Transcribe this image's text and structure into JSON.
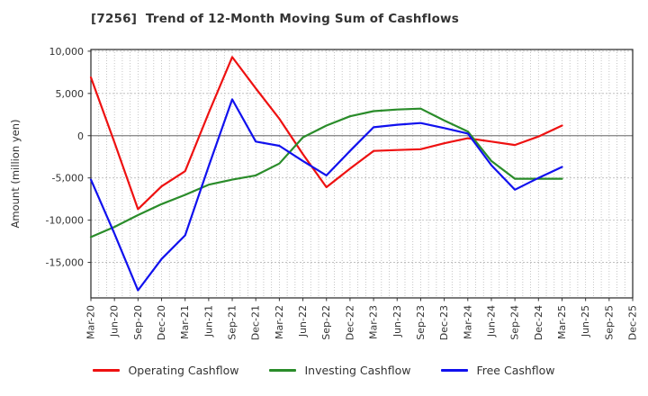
{
  "page": {
    "background": "#ffffff"
  },
  "chart_data": {
    "type": "line",
    "title": "[7256]  Trend of 12-Month Moving Sum of Cashflows",
    "ylabel": "Amount (million yen)",
    "x_tick_labels": [
      "Mar-20",
      "Jun-20",
      "Sep-20",
      "Dec-20",
      "Mar-21",
      "Jun-21",
      "Sep-21",
      "Dec-21",
      "Mar-22",
      "Jun-22",
      "Sep-22",
      "Dec-22",
      "Mar-23",
      "Jun-23",
      "Sep-23",
      "Dec-23",
      "Mar-24",
      "Jun-24",
      "Sep-24",
      "Dec-24",
      "Mar-25",
      "Jun-25",
      "Sep-25",
      "Dec-25"
    ],
    "y_ticks": [
      {
        "value": 10000,
        "label": "10,000"
      },
      {
        "value": 5000,
        "label": "5,000"
      },
      {
        "value": 0,
        "label": "0"
      },
      {
        "value": -5000,
        "label": "-5,000"
      },
      {
        "value": -10000,
        "label": "-10,000"
      },
      {
        "value": -15000,
        "label": "-15,000"
      }
    ],
    "ylim": [
      -19200,
      10200
    ],
    "grid": {
      "vertical": "monthly dotted",
      "horizontal": "every 5000 dotted",
      "zero_line": "solid gray"
    },
    "legend_position": "bottom-center",
    "axis_color": "#333333",
    "grid_color": "#b8b8b8",
    "zero_line_color": "#808080",
    "series": [
      {
        "name": "Operating Cashflow",
        "color": "#ee1111",
        "values": [
          6900,
          -800,
          -8700,
          -6000,
          -4200,
          2700,
          9300,
          5600,
          2000,
          -2200,
          -6100,
          -3900,
          -1800,
          -1700,
          -1600,
          -900,
          -300,
          -700,
          -1100,
          -100,
          1200
        ]
      },
      {
        "name": "Investing Cashflow",
        "color": "#2a8c2a",
        "values": [
          -12000,
          -10800,
          -9400,
          -8100,
          -7000,
          -5800,
          -5200,
          -4700,
          -3300,
          -200,
          1200,
          2300,
          2900,
          3100,
          3200,
          1800,
          500,
          -3000,
          -5100,
          -5100,
          -5100
        ]
      },
      {
        "name": "Free Cashflow",
        "color": "#1111ee",
        "values": [
          -5200,
          -11600,
          -18300,
          -14600,
          -11800,
          -3600,
          4300,
          -700,
          -1200,
          -3000,
          -4700,
          -1800,
          1000,
          1300,
          1500,
          900,
          250,
          -3500,
          -6400,
          -5000,
          -3700
        ]
      }
    ]
  }
}
